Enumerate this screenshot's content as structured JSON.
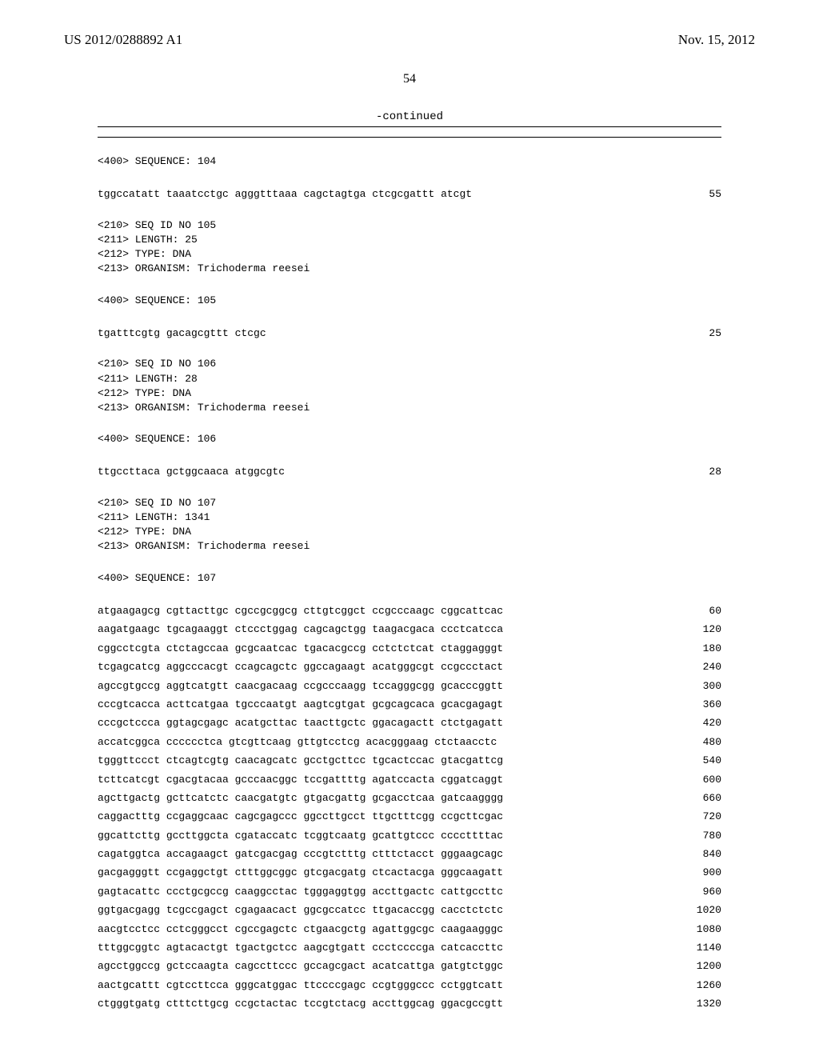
{
  "header": {
    "left": "US 2012/0288892 A1",
    "right": "Nov. 15, 2012"
  },
  "page_number": "54",
  "continued": "-continued",
  "blocks": [
    {
      "lines": [
        "<400> SEQUENCE: 104"
      ]
    },
    {
      "seq": "tggccatatt taaatcctgc agggtttaaa cagctagtga ctcgcgattt atcgt",
      "num": "55"
    },
    {
      "lines": [
        "<210> SEQ ID NO 105",
        "<211> LENGTH: 25",
        "<212> TYPE: DNA",
        "<213> ORGANISM: Trichoderma reesei"
      ]
    },
    {
      "lines": [
        "<400> SEQUENCE: 105"
      ]
    },
    {
      "seq": "tgatttcgtg gacagcgttt ctcgc",
      "num": "25"
    },
    {
      "lines": [
        "<210> SEQ ID NO 106",
        "<211> LENGTH: 28",
        "<212> TYPE: DNA",
        "<213> ORGANISM: Trichoderma reesei"
      ]
    },
    {
      "lines": [
        "<400> SEQUENCE: 106"
      ]
    },
    {
      "seq": "ttgccttaca gctggcaaca atggcgtc",
      "num": "28"
    },
    {
      "lines": [
        "<210> SEQ ID NO 107",
        "<211> LENGTH: 1341",
        "<212> TYPE: DNA",
        "<213> ORGANISM: Trichoderma reesei"
      ]
    },
    {
      "lines": [
        "<400> SEQUENCE: 107"
      ]
    }
  ],
  "long_seq": [
    {
      "seq": "atgaagagcg cgttacttgc cgccgcggcg cttgtcggct ccgcccaagc cggcattcac",
      "num": "60"
    },
    {
      "seq": "aagatgaagc tgcagaaggt ctccctggag cagcagctgg taagacgaca ccctcatcca",
      "num": "120"
    },
    {
      "seq": "cggcctcgta ctctagccaa gcgcaatcac tgacacgccg cctctctcat ctaggagggt",
      "num": "180"
    },
    {
      "seq": "tcgagcatcg aggcccacgt ccagcagctc ggccagaagt acatgggcgt ccgccctact",
      "num": "240"
    },
    {
      "seq": "agccgtgccg aggtcatgtt caacgacaag ccgcccaagg tccagggcgg gcacccggtt",
      "num": "300"
    },
    {
      "seq": "cccgtcacca acttcatgaa tgcccaatgt aagtcgtgat gcgcagcaca gcacgagagt",
      "num": "360"
    },
    {
      "seq": "cccgctccca ggtagcgagc acatgcttac taacttgctc ggacagactt ctctgagatt",
      "num": "420"
    },
    {
      "seq": "accatcggca cccccctca gtcgttcaag gttgtcctcg acacgggaag ctctaacctc",
      "num": "480"
    },
    {
      "seq": "tgggttccct ctcagtcgtg caacagcatc gcctgcttcc tgcactccac gtacgattcg",
      "num": "540"
    },
    {
      "seq": "tcttcatcgt cgacgtacaa gcccaacggc tccgattttg agatccacta cggatcaggt",
      "num": "600"
    },
    {
      "seq": "agcttgactg gcttcatctc caacgatgtc gtgacgattg gcgacctcaa gatcaagggg",
      "num": "660"
    },
    {
      "seq": "caggactttg ccgaggcaac cagcgagccc ggccttgcct ttgctttcgg ccgcttcgac",
      "num": "720"
    },
    {
      "seq": "ggcattcttg gccttggcta cgataccatc tcggtcaatg gcattgtccc ccccttttac",
      "num": "780"
    },
    {
      "seq": "cagatggtca accagaagct gatcgacgag cccgtctttg ctttctacct gggaagcagc",
      "num": "840"
    },
    {
      "seq": "gacgagggtt ccgaggctgt ctttggcggc gtcgacgatg ctcactacga gggcaagatt",
      "num": "900"
    },
    {
      "seq": "gagtacattc ccctgcgccg caaggcctac tgggaggtgg accttgactc cattgccttc",
      "num": "960"
    },
    {
      "seq": "ggtgacgagg tcgccgagct cgagaacact ggcgccatcc ttgacaccgg cacctctctc",
      "num": "1020"
    },
    {
      "seq": "aacgtcctcc cctcgggcct cgccgagctc ctgaacgctg agattggcgc caagaagggc",
      "num": "1080"
    },
    {
      "seq": "tttggcggtc agtacactgt tgactgctcc aagcgtgatt ccctccccga catcaccttc",
      "num": "1140"
    },
    {
      "seq": "agcctggccg gctccaagta cagccttccc gccagcgact acatcattga gatgtctggc",
      "num": "1200"
    },
    {
      "seq": "aactgcattt cgtccttcca gggcatggac ttccccgagc ccgtgggccc cctggtcatt",
      "num": "1260"
    },
    {
      "seq": "ctgggtgatg ctttcttgcg ccgctactac tccgtctacg accttggcag ggacgccgtt",
      "num": "1320"
    }
  ]
}
